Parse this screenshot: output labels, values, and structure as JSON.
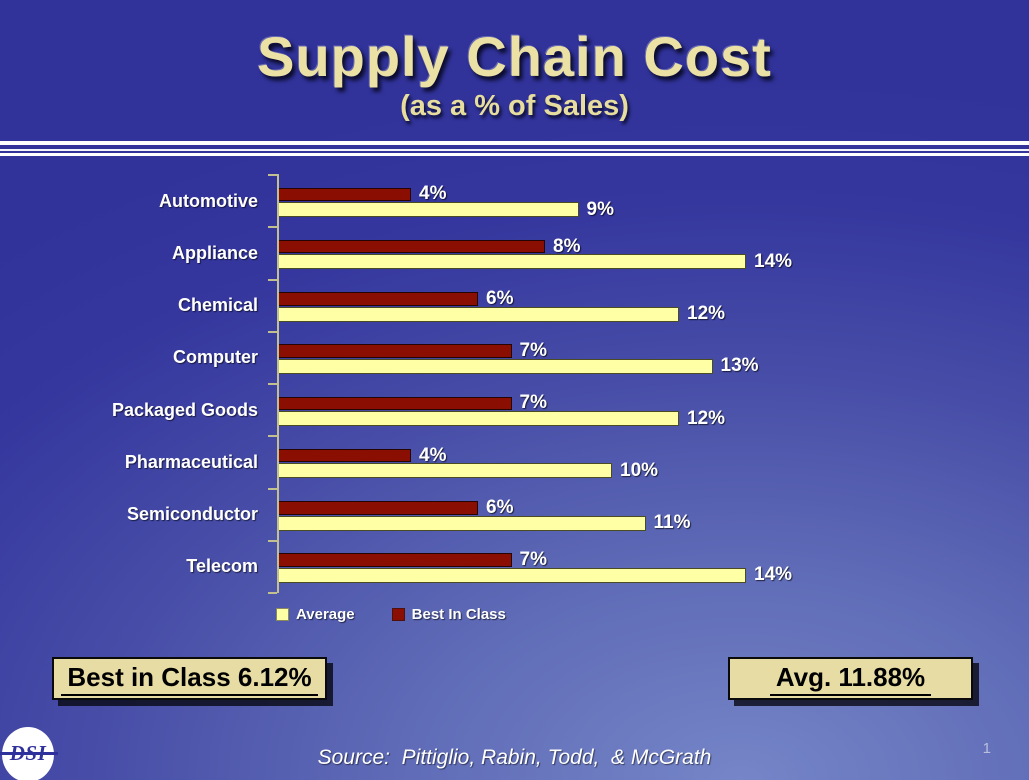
{
  "header": {
    "title": "Supply Chain Cost",
    "subtitle": "(as a % of Sales)"
  },
  "chart_data": {
    "type": "bar",
    "orientation": "horizontal",
    "title": "Supply Chain Cost (as a % of Sales)",
    "categories": [
      "Automotive",
      "Appliance",
      "Chemical",
      "Computer",
      "Packaged Goods",
      "Pharmaceutical",
      "Semiconductor",
      "Telecom"
    ],
    "series": [
      {
        "name": "Best In Class",
        "color": "#8B0E03",
        "values": [
          4,
          8,
          6,
          7,
          7,
          4,
          6,
          7
        ]
      },
      {
        "name": "Average",
        "color": "#FFFFA6",
        "values": [
          9,
          14,
          12,
          13,
          12,
          10,
          11,
          14
        ]
      }
    ],
    "value_suffix": "%",
    "xlim": [
      0,
      15
    ],
    "grid": false,
    "legend_position": "bottom",
    "legend": [
      "Average",
      "Best In Class"
    ]
  },
  "stats": {
    "best_in_class": "Best in Class 6.12%",
    "average": "Avg. 11.88%"
  },
  "footer": {
    "source": "Source:  Pittiglio, Rabin, Todd,  & McGrath",
    "page_number": "1",
    "logo_text": "DSI"
  },
  "colors": {
    "background_dark": "#31339B",
    "background_light": "#7585C7",
    "title_text": "#EBE1A4",
    "bar_best_in_class": "#8B0E03",
    "bar_average": "#FFFFA6",
    "axis": "#C2C08F",
    "stat_box_fill": "#E7DCA4",
    "label_text": "#FFFFFF"
  }
}
